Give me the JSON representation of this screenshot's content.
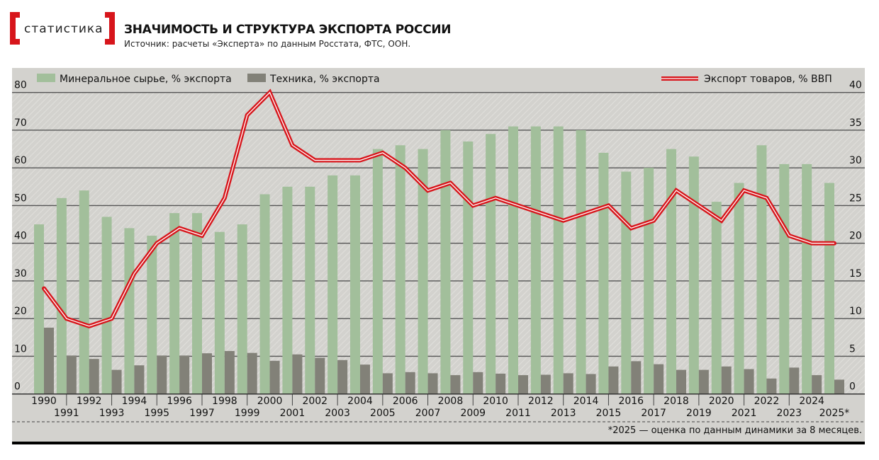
{
  "header": {
    "logo": "статистика",
    "title": "ЗНАЧИМОСТЬ И СТРУКТУРА ЭКСПОРТА РОССИИ",
    "source": "Источник: расчеты «Эксперта» по данным Росстата, ФТС, ООН."
  },
  "footnote": "*2025 — оценка по данным динамики за 8 месяцев.",
  "colors": {
    "mineral": "#a2bf9b",
    "tech": "#828178",
    "line": "#d7151b",
    "background": "#d3d2ce"
  },
  "chart_data": {
    "type": "bar+line",
    "categories": [
      "1990",
      "1991",
      "1992",
      "1993",
      "1994",
      "1995",
      "1996",
      "1997",
      "1998",
      "1999",
      "2000",
      "2001",
      "2002",
      "2003",
      "2004",
      "2005",
      "2006",
      "2007",
      "2008",
      "2009",
      "2010",
      "2011",
      "2012",
      "2013",
      "2014",
      "2015",
      "2016",
      "2017",
      "2018",
      "2019",
      "2020",
      "2021",
      "2022",
      "2023",
      "2024",
      "2025*"
    ],
    "series": [
      {
        "name": "Минеральное сырье, % экспорта",
        "type": "bar",
        "axis": "left",
        "values": [
          45,
          52,
          54,
          47,
          44,
          42,
          48,
          48,
          43,
          45,
          53,
          55,
          55,
          58,
          58,
          65,
          66,
          65,
          70,
          67,
          69,
          71,
          71,
          71,
          70,
          64,
          59,
          60,
          65,
          63,
          51,
          56,
          66,
          61,
          61,
          56
        ]
      },
      {
        "name": "Техника, % экспорта",
        "type": "bar",
        "axis": "left",
        "values": [
          17.6,
          10.2,
          9.3,
          6.4,
          7.6,
          10.2,
          10.2,
          10.8,
          11.4,
          10.9,
          8.8,
          10.5,
          9.6,
          9.0,
          7.8,
          5.5,
          5.8,
          5.5,
          5.0,
          5.8,
          5.4,
          5.0,
          5.1,
          5.5,
          5.3,
          7.3,
          8.7,
          7.9,
          6.4,
          6.4,
          7.3,
          6.6,
          4.1,
          7.0,
          5.0,
          3.8
        ]
      },
      {
        "name": "Экспорт товаров, % ВВП",
        "type": "line",
        "axis": "right",
        "values": [
          14,
          10,
          9,
          10,
          16,
          20,
          22,
          21,
          26,
          37,
          40,
          33,
          31,
          31,
          31,
          32,
          30,
          27,
          28,
          25,
          26,
          25,
          24,
          23,
          24,
          25,
          22,
          23,
          27,
          25,
          23,
          27,
          26,
          21,
          20,
          20
        ]
      }
    ],
    "left_axis": {
      "range": [
        0,
        80
      ],
      "ticks": [
        "0",
        "10",
        "20",
        "30",
        "40",
        "50",
        "60",
        "70",
        "80"
      ]
    },
    "right_axis": {
      "range": [
        0,
        40
      ],
      "ticks": [
        "0",
        "5",
        "10",
        "15",
        "20",
        "25",
        "30",
        "35",
        "40"
      ]
    },
    "grid": true,
    "legend": "top"
  }
}
